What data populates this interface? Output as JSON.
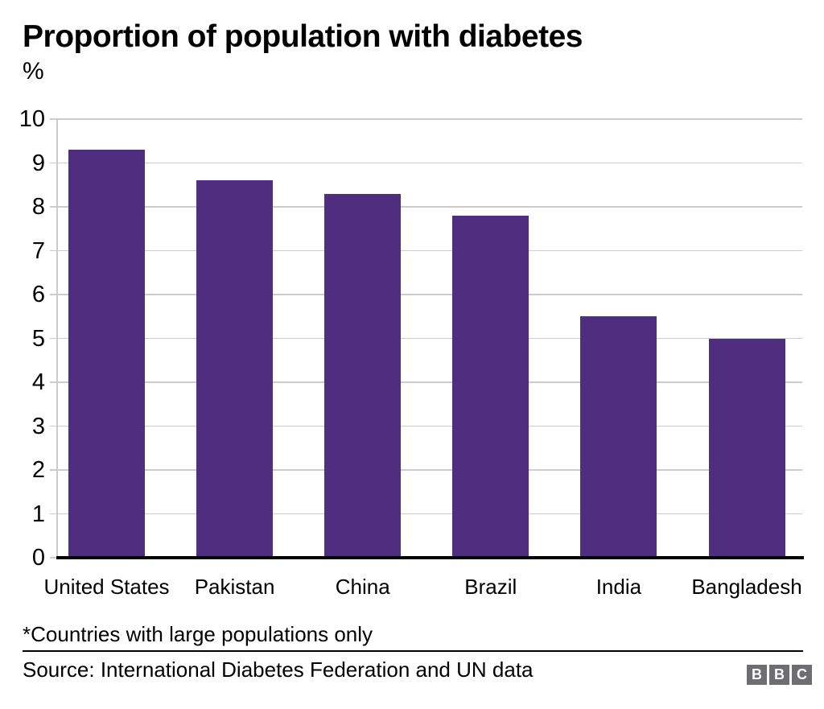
{
  "header": {
    "title": "Proportion of population with diabetes",
    "unit_label": "%"
  },
  "chart_data": {
    "type": "bar",
    "title": "Proportion of population with diabetes",
    "ylabel": "%",
    "xlabel": "",
    "categories": [
      "United States",
      "Pakistan",
      "China",
      "Brazil",
      "India",
      "Bangladesh"
    ],
    "values": [
      9.3,
      8.6,
      8.3,
      7.8,
      5.5,
      5.0
    ],
    "ylim": [
      0,
      10
    ],
    "yticks": [
      0,
      1,
      2,
      3,
      4,
      5,
      6,
      7,
      8,
      9,
      10
    ],
    "grid": "horizontal gridlines on, integer steps",
    "legend": "none",
    "bar_color": "#4f2d7f"
  },
  "footer": {
    "footnote": "*Countries with large populations only",
    "source": "Source: International Diabetes Federation and UN data",
    "logo": {
      "letters": [
        "B",
        "B",
        "C"
      ]
    }
  },
  "colors": {
    "bar": "#4f2d7f",
    "gridline": "#cccccc",
    "baseline": "#000000",
    "text": "#000000",
    "logo_gray": "#6e6e72"
  }
}
